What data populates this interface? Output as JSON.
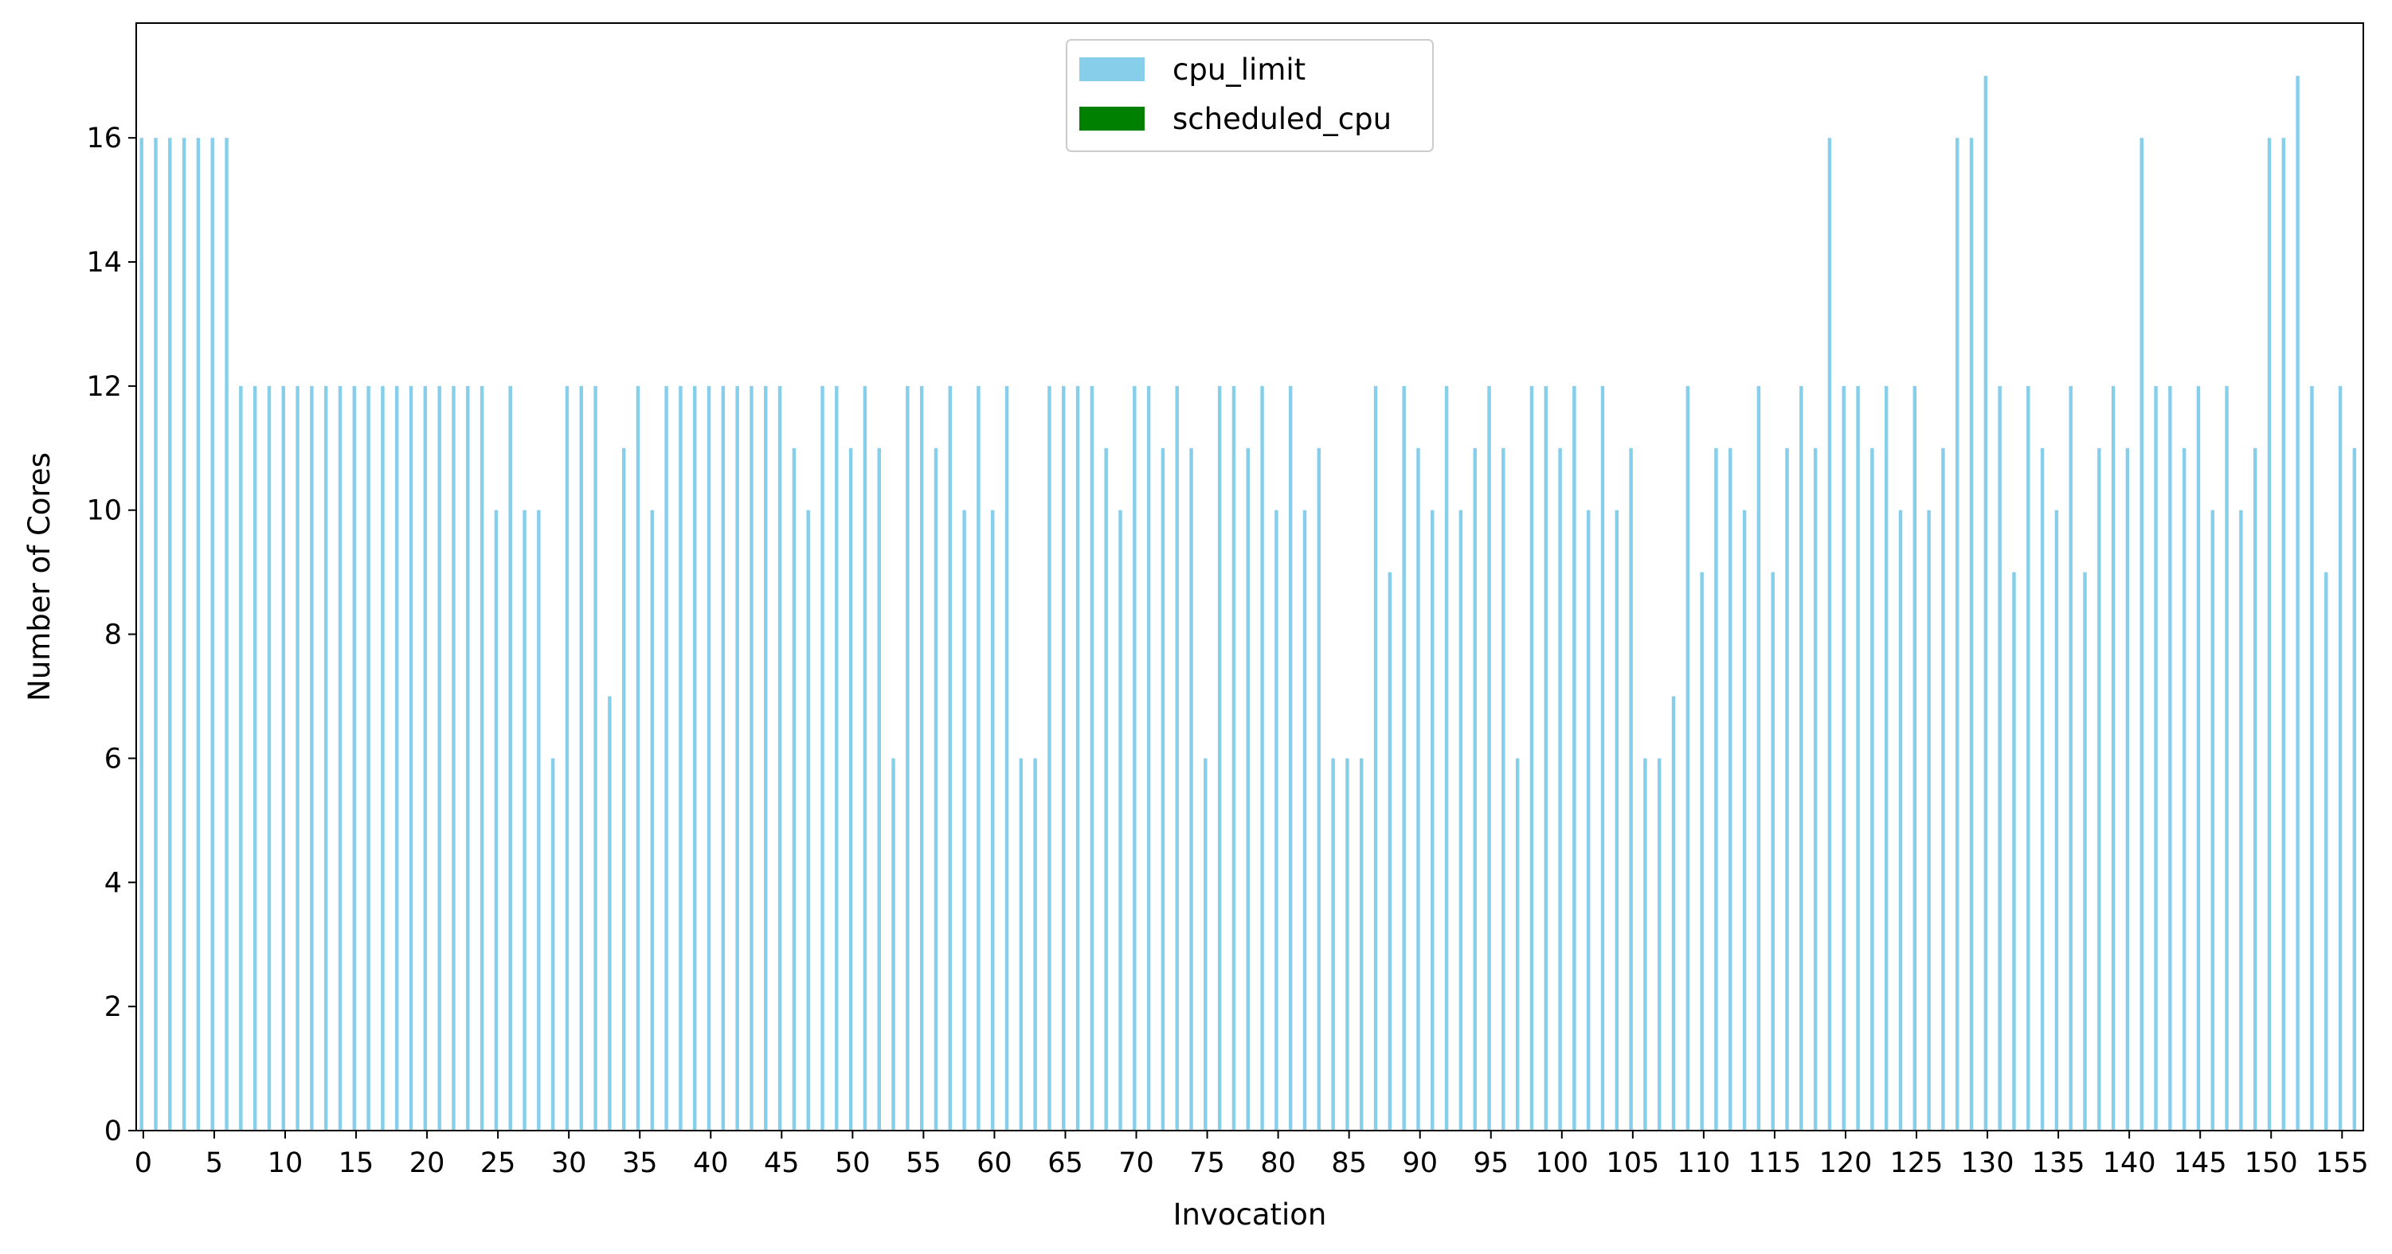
{
  "chart_data": {
    "type": "bar",
    "xlabel": "Invocation",
    "ylabel": "Number of Cores",
    "ylim": [
      0,
      17.85
    ],
    "yticks": [
      0,
      2,
      4,
      6,
      8,
      10,
      12,
      14,
      16
    ],
    "xticks": [
      0,
      5,
      10,
      15,
      20,
      25,
      30,
      35,
      40,
      45,
      50,
      55,
      60,
      65,
      70,
      75,
      80,
      85,
      90,
      95,
      100,
      105,
      110,
      115,
      120,
      125,
      130,
      135,
      140,
      145,
      150,
      155
    ],
    "grid": false,
    "legend_position": "upper center",
    "x": [
      0,
      1,
      2,
      3,
      4,
      5,
      6,
      7,
      8,
      9,
      10,
      11,
      12,
      13,
      14,
      15,
      16,
      17,
      18,
      19,
      20,
      21,
      22,
      23,
      24,
      25,
      26,
      27,
      28,
      29,
      30,
      31,
      32,
      33,
      34,
      35,
      36,
      37,
      38,
      39,
      40,
      41,
      42,
      43,
      44,
      45,
      46,
      47,
      48,
      49,
      50,
      51,
      52,
      53,
      54,
      55,
      56,
      57,
      58,
      59,
      60,
      61,
      62,
      63,
      64,
      65,
      66,
      67,
      68,
      69,
      70,
      71,
      72,
      73,
      74,
      75,
      76,
      77,
      78,
      79,
      80,
      81,
      82,
      83,
      84,
      85,
      86,
      87,
      88,
      89,
      90,
      91,
      92,
      93,
      94,
      95,
      96,
      97,
      98,
      99,
      100,
      101,
      102,
      103,
      104,
      105,
      106,
      107,
      108,
      109,
      110,
      111,
      112,
      113,
      114,
      115,
      116,
      117,
      118,
      119,
      120,
      121,
      122,
      123,
      124,
      125,
      126,
      127,
      128,
      129,
      130,
      131,
      132,
      133,
      134,
      135,
      136,
      137,
      138,
      139,
      140,
      141,
      142,
      143,
      144,
      145,
      146,
      147,
      148,
      149,
      150,
      151,
      152,
      153,
      154,
      155,
      156
    ],
    "series": [
      {
        "name": "cpu_limit",
        "color": "#87CEEB",
        "values": [
          16,
          16,
          16,
          16,
          16,
          16,
          16,
          12,
          12,
          12,
          12,
          12,
          12,
          12,
          12,
          12,
          12,
          12,
          12,
          12,
          12,
          12,
          12,
          12,
          12,
          10,
          12,
          10,
          10,
          6,
          12,
          12,
          12,
          7,
          11,
          12,
          10,
          12,
          12,
          12,
          12,
          12,
          12,
          12,
          12,
          12,
          11,
          10,
          12,
          12,
          11,
          12,
          11,
          6,
          12,
          12,
          11,
          12,
          10,
          12,
          10,
          12,
          6,
          6,
          12,
          12,
          12,
          12,
          11,
          10,
          12,
          12,
          11,
          12,
          11,
          6,
          12,
          12,
          11,
          12,
          10,
          12,
          10,
          11,
          6,
          6,
          6,
          12,
          9,
          12,
          11,
          10,
          12,
          10,
          11,
          12,
          11,
          6,
          12,
          12,
          11,
          12,
          10,
          12,
          10,
          11,
          6,
          6,
          7,
          12,
          9,
          11,
          11,
          10,
          12,
          9,
          11,
          12,
          11,
          16,
          12,
          12,
          11,
          12,
          10,
          12,
          10,
          11,
          16,
          16,
          17,
          12,
          9,
          12,
          11,
          10,
          12,
          9,
          11,
          12,
          11,
          16,
          12,
          12,
          11,
          12,
          10,
          12,
          10,
          11,
          16,
          16,
          17,
          12,
          9,
          12,
          11
        ]
      },
      {
        "name": "scheduled_cpu",
        "color": "#008000",
        "values": [
          0,
          0,
          0,
          0,
          0,
          0,
          0,
          0,
          0,
          0,
          0,
          0,
          0,
          0,
          0,
          0,
          0,
          0,
          0,
          0,
          0,
          0,
          0,
          0,
          0,
          0,
          0,
          0,
          0,
          0,
          0,
          0,
          0,
          0,
          0,
          0,
          0,
          0,
          0,
          0,
          0,
          0,
          0,
          0,
          0,
          0,
          0,
          0,
          0,
          0,
          0,
          0,
          0,
          0,
          0,
          0,
          0,
          0,
          0,
          0,
          0,
          0,
          0,
          0,
          0,
          0,
          0,
          0,
          0,
          0,
          0,
          0,
          0,
          0,
          0,
          0,
          0,
          0,
          0,
          0,
          0,
          0,
          0,
          0,
          0,
          0,
          0,
          0,
          0,
          0,
          0,
          0,
          0,
          0,
          0,
          0,
          0,
          0,
          0,
          0,
          0,
          0,
          0,
          0,
          0,
          0,
          0,
          0,
          0,
          0,
          0,
          0,
          0,
          0,
          0,
          0,
          0,
          0,
          0,
          0,
          0,
          0,
          0,
          0,
          0,
          0,
          0,
          0,
          0,
          0,
          0,
          0,
          0,
          0,
          0,
          0,
          0,
          0,
          0,
          0,
          0,
          0,
          0,
          0,
          0,
          0,
          0,
          0,
          0,
          0,
          0,
          0,
          0,
          0,
          0,
          0,
          0
        ]
      }
    ]
  }
}
